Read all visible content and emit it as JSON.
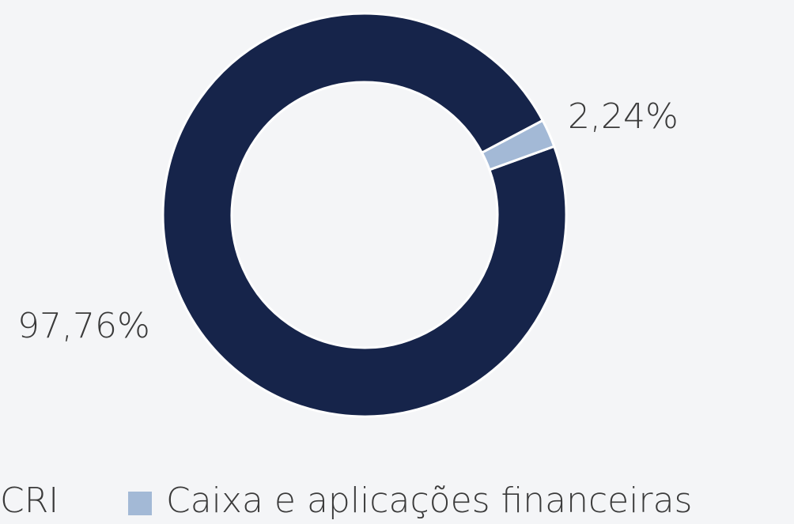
{
  "chart_data": {
    "type": "donut",
    "categories": [
      "CRI",
      "Caixa e aplicações financeiras"
    ],
    "values": [
      97.76,
      2.24
    ],
    "value_labels": [
      "97,76%",
      "2,24%"
    ],
    "colors": [
      "#16244a",
      "#a3b9d6"
    ],
    "legend": "bottom"
  }
}
